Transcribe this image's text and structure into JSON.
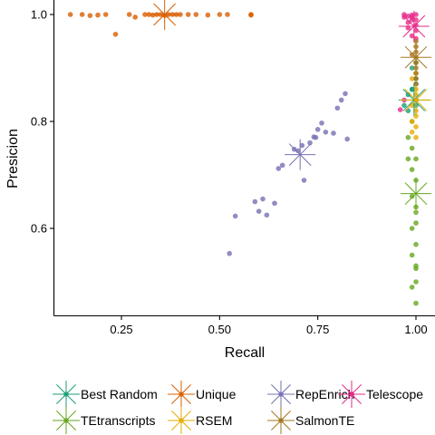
{
  "chart_data": {
    "type": "scatter",
    "xlabel": "Recall",
    "ylabel": "Presicion",
    "xlim": [
      0.1,
      1.01
    ],
    "ylim": [
      0.44,
      1.02
    ],
    "xticks": [
      {
        "value": 0.25,
        "label": "0.25"
      },
      {
        "value": 0.5,
        "label": "0.50"
      },
      {
        "value": 0.75,
        "label": "0.75"
      },
      {
        "value": 1.0,
        "label": "1.00"
      }
    ],
    "yticks": [
      {
        "value": 0.6,
        "label": "0.6"
      },
      {
        "value": 0.8,
        "label": "0.8"
      },
      {
        "value": 1.0,
        "label": "1.0"
      }
    ],
    "grid": false,
    "legend_position": "bottom",
    "series": [
      {
        "name": "Best Random",
        "color": "#1b9e77",
        "mean": [
          0.995,
          0.84
        ],
        "points": [
          [
            0.97,
            0.83
          ],
          [
            0.98,
            0.85
          ],
          [
            0.99,
            0.86
          ],
          [
            1.0,
            0.87
          ],
          [
            1.0,
            0.88
          ],
          [
            0.99,
            0.9
          ],
          [
            1.0,
            0.91
          ],
          [
            0.98,
            0.82
          ],
          [
            1.0,
            0.84
          ],
          [
            0.99,
            0.86
          ],
          [
            1.0,
            0.83
          ]
        ]
      },
      {
        "name": "Unique",
        "color": "#d95f02",
        "mean": [
          0.36,
          1.0
        ],
        "points": [
          [
            0.12,
            1.0
          ],
          [
            0.15,
            1.0
          ],
          [
            0.17,
            0.998
          ],
          [
            0.19,
            0.999
          ],
          [
            0.21,
            1.0
          ],
          [
            0.235,
            0.963
          ],
          [
            0.27,
            1.0
          ],
          [
            0.285,
            0.995
          ],
          [
            0.31,
            1.0
          ],
          [
            0.32,
            1.0
          ],
          [
            0.33,
            0.999
          ],
          [
            0.34,
            1.0
          ],
          [
            0.35,
            1.0
          ],
          [
            0.36,
            0.998
          ],
          [
            0.37,
            1.0
          ],
          [
            0.38,
            1.0
          ],
          [
            0.39,
            1.0
          ],
          [
            0.4,
            1.0
          ],
          [
            0.42,
            1.0
          ],
          [
            0.44,
            1.0
          ],
          [
            0.47,
            0.999
          ],
          [
            0.5,
            1.0
          ],
          [
            0.52,
            1.0
          ],
          [
            0.58,
            1.0
          ],
          [
            0.58,
            0.999
          ]
        ]
      },
      {
        "name": "RepEnrich",
        "color": "#7570b3",
        "mean": [
          0.705,
          0.738
        ],
        "points": [
          [
            0.525,
            0.553
          ],
          [
            0.54,
            0.623
          ],
          [
            0.59,
            0.65
          ],
          [
            0.6,
            0.632
          ],
          [
            0.62,
            0.625
          ],
          [
            0.61,
            0.655
          ],
          [
            0.64,
            0.647
          ],
          [
            0.65,
            0.712
          ],
          [
            0.66,
            0.718
          ],
          [
            0.69,
            0.748
          ],
          [
            0.7,
            0.745
          ],
          [
            0.71,
            0.755
          ],
          [
            0.715,
            0.69
          ],
          [
            0.73,
            0.76
          ],
          [
            0.74,
            0.771
          ],
          [
            0.75,
            0.785
          ],
          [
            0.76,
            0.797
          ],
          [
            0.77,
            0.78
          ],
          [
            0.79,
            0.778
          ],
          [
            0.8,
            0.825
          ],
          [
            0.81,
            0.84
          ],
          [
            0.82,
            0.852
          ],
          [
            0.825,
            0.767
          ],
          [
            0.745,
            0.77
          ]
        ]
      },
      {
        "name": "Telescope",
        "color": "#e7298a",
        "mean": [
          0.995,
          0.978
        ],
        "points": [
          [
            0.97,
            1.0
          ],
          [
            0.98,
            0.997
          ],
          [
            0.99,
            0.999
          ],
          [
            1.0,
            1.0
          ],
          [
            1.0,
            0.99
          ],
          [
            0.99,
            0.99
          ],
          [
            1.0,
            0.98
          ],
          [
            0.98,
            0.975
          ],
          [
            1.0,
            0.97
          ],
          [
            0.99,
            0.96
          ],
          [
            1.0,
            0.955
          ],
          [
            0.98,
            0.985
          ],
          [
            0.97,
            0.995
          ],
          [
            0.96,
            0.822
          ],
          [
            0.97,
            0.84
          ],
          [
            0.99,
            0.995
          ]
        ]
      },
      {
        "name": "TEtranscripts",
        "color": "#66a61e",
        "mean": [
          1.0,
          0.665
        ],
        "points": [
          [
            0.99,
            0.66
          ],
          [
            1.0,
            0.69
          ],
          [
            1.0,
            0.63
          ],
          [
            0.99,
            0.6
          ],
          [
            1.0,
            0.61
          ],
          [
            1.0,
            0.57
          ],
          [
            0.99,
            0.55
          ],
          [
            1.0,
            0.53
          ],
          [
            1.0,
            0.5
          ],
          [
            0.99,
            0.49
          ],
          [
            1.0,
            0.46
          ],
          [
            0.99,
            0.71
          ],
          [
            1.0,
            0.73
          ],
          [
            0.99,
            0.75
          ],
          [
            0.98,
            0.77
          ],
          [
            1.0,
            0.64
          ],
          [
            1.0,
            0.525
          ],
          [
            0.98,
            0.73
          ],
          [
            0.99,
            0.8
          ]
        ]
      },
      {
        "name": "RSEM",
        "color": "#e6ab02",
        "mean": [
          1.0,
          0.84
        ],
        "points": [
          [
            0.99,
            0.8
          ],
          [
            1.0,
            0.81
          ],
          [
            1.0,
            0.82
          ],
          [
            0.99,
            0.83
          ],
          [
            1.0,
            0.85
          ],
          [
            1.0,
            0.86
          ],
          [
            0.99,
            0.88
          ],
          [
            1.0,
            0.89
          ],
          [
            1.0,
            0.79
          ],
          [
            1.0,
            0.77
          ],
          [
            0.99,
            0.78
          ],
          [
            1.0,
            0.84
          ]
        ]
      },
      {
        "name": "SalmonTE",
        "color": "#a6761d",
        "mean": [
          1.0,
          0.92
        ],
        "points": [
          [
            1.0,
            0.94
          ],
          [
            1.0,
            0.93
          ],
          [
            1.0,
            0.92
          ],
          [
            1.0,
            0.91
          ],
          [
            1.0,
            0.9
          ],
          [
            1.0,
            0.89
          ],
          [
            1.0,
            0.95
          ],
          [
            1.0,
            0.88
          ],
          [
            1.0,
            0.87
          ],
          [
            0.99,
            0.925
          ]
        ]
      }
    ]
  }
}
